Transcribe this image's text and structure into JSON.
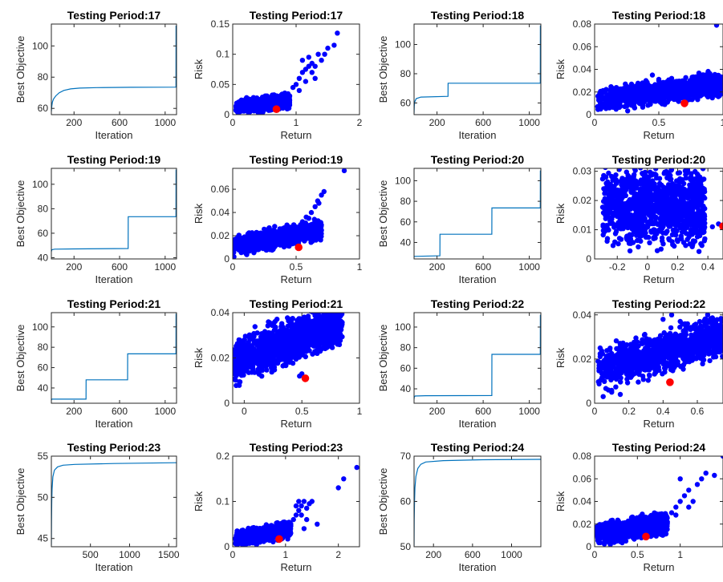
{
  "figure": {
    "colors": {
      "line": "#0072BD",
      "point": "#0000FF",
      "highlight": "#FF0000",
      "axes": "#262626"
    },
    "panels": [
      {
        "kind": "line",
        "title": "Testing Period:17",
        "xlabel": "Iteration",
        "ylabel": "Best Objective",
        "xlim": [
          1,
          1100
        ],
        "ylim": [
          56,
          114
        ],
        "xticks": [
          200,
          600,
          1000
        ],
        "yticks": [
          60,
          80,
          100
        ],
        "segments": [
          [
            1,
            58
          ],
          [
            3,
            60
          ],
          [
            6,
            62
          ],
          [
            10,
            64
          ],
          [
            20,
            66
          ],
          [
            40,
            68
          ],
          [
            70,
            70
          ],
          [
            110,
            71.5
          ],
          [
            170,
            72.5
          ],
          [
            250,
            73
          ],
          [
            400,
            73.3
          ],
          [
            700,
            73.5
          ],
          [
            1095,
            73.6
          ],
          [
            1096,
            113
          ]
        ]
      },
      {
        "kind": "scatter",
        "title": "Testing Period:17",
        "xlabel": "Return",
        "ylabel": "Risk",
        "xlim": [
          0,
          2
        ],
        "ylim": [
          0,
          0.15
        ],
        "xticks": [
          0,
          1,
          2
        ],
        "yticks": [
          0,
          0.05,
          0.1,
          0.15
        ],
        "cloud": {
          "xmin": 0.05,
          "xmax": 0.9,
          "ybase": 0.003,
          "slope": 0.014,
          "spread": 0.018,
          "n": 900
        },
        "extra": [
          [
            1.0,
            0.05
          ],
          [
            1.05,
            0.06
          ],
          [
            1.1,
            0.07
          ],
          [
            1.15,
            0.075
          ],
          [
            1.2,
            0.08
          ],
          [
            1.25,
            0.07
          ],
          [
            1.3,
            0.08
          ],
          [
            1.1,
            0.09
          ],
          [
            1.2,
            0.095
          ],
          [
            1.35,
            0.1
          ],
          [
            1.4,
            0.09
          ],
          [
            1.45,
            0.1
          ],
          [
            1.5,
            0.11
          ],
          [
            1.6,
            0.115
          ],
          [
            1.65,
            0.135
          ],
          [
            0.95,
            0.045
          ],
          [
            1.05,
            0.04
          ],
          [
            1.15,
            0.055
          ],
          [
            1.25,
            0.085
          ],
          [
            1.3,
            0.06
          ]
        ],
        "highlight": [
          0.69,
          0.009
        ]
      },
      {
        "kind": "line",
        "title": "Testing Period:18",
        "xlabel": "Iteration",
        "ylabel": "Best Objective",
        "xlim": [
          1,
          1100
        ],
        "ylim": [
          52,
          114
        ],
        "xticks": [
          200,
          600,
          1000
        ],
        "yticks": [
          60,
          80,
          100
        ],
        "segments": [
          [
            1,
            53
          ],
          [
            3,
            58
          ],
          [
            8,
            61
          ],
          [
            20,
            63
          ],
          [
            60,
            64
          ],
          [
            295,
            64.5
          ],
          [
            296,
            73.5
          ],
          [
            1095,
            73.5
          ],
          [
            1096,
            113
          ]
        ]
      },
      {
        "kind": "scatter",
        "title": "Testing Period:18",
        "xlabel": "Return",
        "ylabel": "Risk",
        "xlim": [
          0,
          1
        ],
        "ylim": [
          0,
          0.08
        ],
        "xticks": [
          0,
          0.5,
          1
        ],
        "yticks": [
          0,
          0.02,
          0.04,
          0.06,
          0.08
        ],
        "cloud": {
          "xmin": 0.02,
          "xmax": 1.0,
          "ybase": 0.004,
          "slope": 0.015,
          "spread": 0.017,
          "n": 1100
        },
        "extra": [
          [
            0.45,
            0.035
          ],
          [
            0.5,
            0.03
          ],
          [
            0.55,
            0.028
          ],
          [
            0.6,
            0.032
          ],
          [
            0.4,
            0.03
          ],
          [
            0.95,
            0.079
          ]
        ],
        "highlight": [
          0.7,
          0.01
        ]
      },
      {
        "kind": "line",
        "title": "Testing Period:19",
        "xlabel": "Iteration",
        "ylabel": "Best Objective",
        "xlim": [
          1,
          1100
        ],
        "ylim": [
          39,
          113
        ],
        "xticks": [
          200,
          600,
          1000
        ],
        "yticks": [
          40,
          60,
          80,
          100
        ],
        "segments": [
          [
            1,
            45
          ],
          [
            5,
            46.5
          ],
          [
            30,
            47
          ],
          [
            200,
            47.2
          ],
          [
            675,
            47.5
          ],
          [
            676,
            73.5
          ],
          [
            1095,
            73.5
          ],
          [
            1096,
            112
          ]
        ]
      },
      {
        "kind": "scatter",
        "title": "Testing Period:19",
        "xlabel": "Return",
        "ylabel": "Risk",
        "xlim": [
          0,
          1
        ],
        "ylim": [
          0,
          0.078
        ],
        "xticks": [
          0,
          0.5,
          1
        ],
        "yticks": [
          0,
          0.02,
          0.04,
          0.06
        ],
        "cloud": {
          "xmin": 0.0,
          "xmax": 0.7,
          "ybase": 0.004,
          "slope": 0.02,
          "spread": 0.014,
          "n": 1000
        },
        "extra": [
          [
            0.6,
            0.035
          ],
          [
            0.62,
            0.04
          ],
          [
            0.65,
            0.045
          ],
          [
            0.67,
            0.05
          ],
          [
            0.7,
            0.055
          ],
          [
            0.72,
            0.058
          ],
          [
            0.68,
            0.048
          ],
          [
            0.88,
            0.076
          ],
          [
            0.55,
            0.032
          ],
          [
            0.58,
            0.036
          ]
        ],
        "highlight": [
          0.52,
          0.01
        ]
      },
      {
        "kind": "line",
        "title": "Testing Period:20",
        "xlabel": "Iteration",
        "ylabel": "Best Objective",
        "xlim": [
          1,
          1100
        ],
        "ylim": [
          24,
          112
        ],
        "xticks": [
          200,
          600,
          1000
        ],
        "yticks": [
          40,
          60,
          80,
          100
        ],
        "segments": [
          [
            1,
            26
          ],
          [
            5,
            26.5
          ],
          [
            225,
            27
          ],
          [
            226,
            48
          ],
          [
            675,
            48
          ],
          [
            676,
            73.5
          ],
          [
            1095,
            73.5
          ],
          [
            1096,
            110
          ]
        ]
      },
      {
        "kind": "scatter",
        "title": "Testing Period:20",
        "xlabel": "Return",
        "ylabel": "Risk",
        "xlim": [
          -0.35,
          0.5
        ],
        "ylim": [
          0,
          0.031
        ],
        "xticks": [
          -0.2,
          0,
          0.2,
          0.4
        ],
        "yticks": [
          0,
          0.01,
          0.02,
          0.03
        ],
        "cloud": {
          "xmin": -0.3,
          "xmax": 0.38,
          "ybase": 0.007,
          "slope": 0.0,
          "spread": 0.022,
          "n": 1200
        },
        "extra": [
          [
            0.47,
            0.012
          ],
          [
            0.43,
            0.011
          ],
          [
            0.3,
            0.005
          ],
          [
            0.2,
            0.006
          ]
        ],
        "highlight": [
          0.5,
          0.0112
        ]
      },
      {
        "kind": "line",
        "title": "Testing Period:21",
        "xlabel": "Iteration",
        "ylabel": "Best Objective",
        "xlim": [
          1,
          1100
        ],
        "ylim": [
          25,
          114
        ],
        "xticks": [
          200,
          600,
          1000
        ],
        "yticks": [
          40,
          60,
          80,
          100
        ],
        "segments": [
          [
            1,
            28
          ],
          [
            5,
            29
          ],
          [
            305,
            29
          ],
          [
            306,
            48
          ],
          [
            670,
            48
          ],
          [
            671,
            73.5
          ],
          [
            1095,
            73.5
          ],
          [
            1096,
            113
          ]
        ]
      },
      {
        "kind": "scatter",
        "title": "Testing Period:21",
        "xlabel": "Return",
        "ylabel": "Risk",
        "xlim": [
          -0.1,
          1
        ],
        "ylim": [
          0,
          0.04
        ],
        "xticks": [
          0,
          0.5,
          1
        ],
        "yticks": [
          0,
          0.02,
          0.04
        ],
        "cloud": {
          "xmin": -0.1,
          "xmax": 0.85,
          "ybase": 0.01,
          "slope": 0.019,
          "spread": 0.016,
          "n": 1300
        },
        "extra": [
          [
            0.5,
            0.013
          ],
          [
            0.48,
            0.012
          ]
        ],
        "highlight": [
          0.53,
          0.011
        ]
      },
      {
        "kind": "line",
        "title": "Testing Period:22",
        "xlabel": "Iteration",
        "ylabel": "Best Objective",
        "xlim": [
          1,
          1100
        ],
        "ylim": [
          26,
          114
        ],
        "xticks": [
          200,
          600,
          1000
        ],
        "yticks": [
          40,
          60,
          80,
          100
        ],
        "segments": [
          [
            1,
            30
          ],
          [
            3,
            32
          ],
          [
            10,
            33
          ],
          [
            100,
            33.3
          ],
          [
            675,
            33.5
          ],
          [
            676,
            73.5
          ],
          [
            1095,
            73.5
          ],
          [
            1096,
            112
          ]
        ]
      },
      {
        "kind": "scatter",
        "title": "Testing Period:22",
        "xlabel": "Return",
        "ylabel": "Risk",
        "xlim": [
          0,
          0.75
        ],
        "ylim": [
          0,
          0.041
        ],
        "xticks": [
          0,
          0.2,
          0.4,
          0.6
        ],
        "yticks": [
          0,
          0.02,
          0.04
        ],
        "cloud": {
          "xmin": 0.02,
          "xmax": 0.75,
          "ybase": 0.008,
          "slope": 0.02,
          "spread": 0.015,
          "n": 1200
        },
        "extra": [
          [
            0.05,
            0.003
          ],
          [
            0.1,
            0.005
          ],
          [
            0.08,
            0.006
          ],
          [
            0.15,
            0.004
          ],
          [
            0.45,
            0.04
          ],
          [
            0.5,
            0.037
          ],
          [
            0.4,
            0.038
          ]
        ],
        "highlight": [
          0.44,
          0.0095
        ]
      },
      {
        "kind": "line",
        "title": "Testing Period:23",
        "xlabel": "Iteration",
        "ylabel": "Best Objective",
        "xlim": [
          1,
          1600
        ],
        "ylim": [
          44,
          55
        ],
        "xticks": [
          500,
          1000,
          1500
        ],
        "yticks": [
          45,
          50,
          55
        ],
        "segments": [
          [
            1,
            44.2
          ],
          [
            3,
            47
          ],
          [
            6,
            49.5
          ],
          [
            10,
            51
          ],
          [
            20,
            52.5
          ],
          [
            40,
            53.3
          ],
          [
            80,
            53.7
          ],
          [
            150,
            53.9
          ],
          [
            300,
            54
          ],
          [
            800,
            54.1
          ],
          [
            1600,
            54.2
          ]
        ]
      },
      {
        "kind": "scatter",
        "title": "Testing Period:23",
        "xlabel": "Return",
        "ylabel": "Risk",
        "xlim": [
          0,
          2.4
        ],
        "ylim": [
          0,
          0.2
        ],
        "xticks": [
          0,
          1,
          2
        ],
        "yticks": [
          0,
          0.1,
          0.2
        ],
        "cloud": {
          "xmin": 0.05,
          "xmax": 1.1,
          "ybase": 0.003,
          "slope": 0.02,
          "spread": 0.028,
          "n": 800
        },
        "extra": [
          [
            1.1,
            0.05
          ],
          [
            1.15,
            0.06
          ],
          [
            1.2,
            0.07
          ],
          [
            1.25,
            0.08
          ],
          [
            1.3,
            0.09
          ],
          [
            1.35,
            0.1
          ],
          [
            1.4,
            0.085
          ],
          [
            1.45,
            0.095
          ],
          [
            1.3,
            0.07
          ],
          [
            1.5,
            0.1
          ],
          [
            1.2,
            0.09
          ],
          [
            1.25,
            0.1
          ],
          [
            1.4,
            0.06
          ],
          [
            2.0,
            0.13
          ],
          [
            2.1,
            0.15
          ],
          [
            2.35,
            0.175
          ],
          [
            1.6,
            0.05
          ],
          [
            1.35,
            0.04
          ]
        ],
        "highlight": [
          0.88,
          0.017
        ]
      },
      {
        "kind": "line",
        "title": "Testing Period:24",
        "xlabel": "Iteration",
        "ylabel": "Best Objective",
        "xlim": [
          1,
          1300
        ],
        "ylim": [
          50,
          70
        ],
        "xticks": [
          200,
          600,
          1000
        ],
        "yticks": [
          50,
          60,
          70
        ],
        "segments": [
          [
            1,
            50.2
          ],
          [
            3,
            56
          ],
          [
            6,
            60
          ],
          [
            10,
            63
          ],
          [
            20,
            65.5
          ],
          [
            40,
            67.3
          ],
          [
            70,
            68.2
          ],
          [
            120,
            68.7
          ],
          [
            300,
            69
          ],
          [
            700,
            69.2
          ],
          [
            1300,
            69.3
          ]
        ]
      },
      {
        "kind": "scatter",
        "title": "Testing Period:24",
        "xlabel": "Return",
        "ylabel": "Risk",
        "xlim": [
          0,
          1.5
        ],
        "ylim": [
          0,
          0.08
        ],
        "xticks": [
          0,
          0.5,
          1
        ],
        "yticks": [
          0,
          0.02,
          0.04,
          0.06,
          0.08
        ],
        "cloud": {
          "xmin": 0.02,
          "xmax": 0.85,
          "ybase": 0.003,
          "slope": 0.012,
          "spread": 0.016,
          "n": 900
        },
        "extra": [
          [
            0.9,
            0.03
          ],
          [
            0.95,
            0.035
          ],
          [
            1.0,
            0.04
          ],
          [
            1.05,
            0.045
          ],
          [
            1.1,
            0.05
          ],
          [
            1.15,
            0.04
          ],
          [
            1.2,
            0.055
          ],
          [
            1.25,
            0.06
          ],
          [
            1.3,
            0.065
          ],
          [
            1.4,
            0.063
          ],
          [
            1.0,
            0.06
          ],
          [
            1.5,
            0.08
          ],
          [
            0.95,
            0.028
          ],
          [
            1.1,
            0.035
          ]
        ],
        "highlight": [
          0.6,
          0.009
        ]
      }
    ]
  }
}
